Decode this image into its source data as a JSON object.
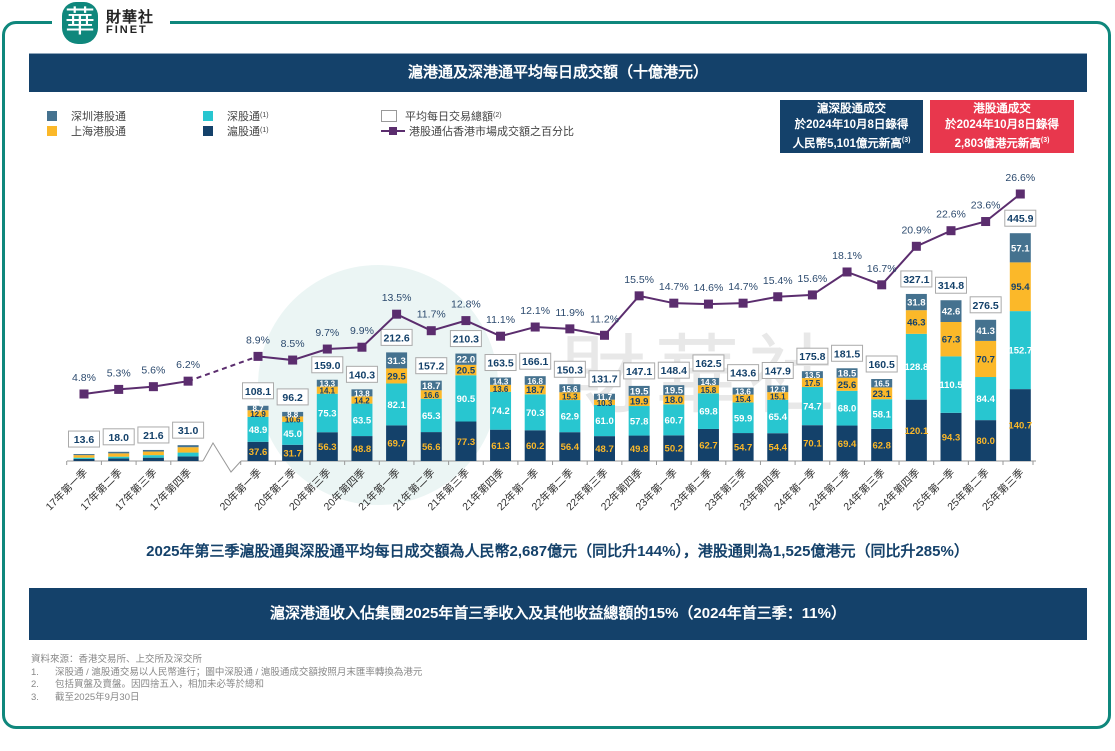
{
  "brand": {
    "logo_char": "華",
    "name_cn": "財華社",
    "name_en": "FINET"
  },
  "title": "滬港通及深港通平均每日成交額（十億港元）",
  "legend": {
    "items": [
      {
        "label": "深圳港股通",
        "color": "#45728f",
        "sup": ""
      },
      {
        "label": "上海港股通",
        "color": "#fbb829",
        "sup": ""
      },
      {
        "label": "深股通",
        "color": "#28c6d0",
        "sup": "(1)"
      },
      {
        "label": "滬股通",
        "color": "#14416a",
        "sup": "(1)"
      },
      {
        "label": "平均每日交易總額",
        "sup": "(2)"
      },
      {
        "label": "港股通佔香港市場成交額之百分比",
        "color": "#5b2d6e"
      }
    ]
  },
  "callouts": [
    {
      "lines": [
        "滬深股通成交",
        "於2024年10月8日錄得",
        "人民幣5,101億元新高"
      ],
      "sup": "(3)",
      "color": "#14416a"
    },
    {
      "lines": [
        "港股通成交",
        "於2024年10月8日錄得",
        "2,803億港元新高"
      ],
      "sup": "(3)",
      "color": "#e8374d"
    }
  ],
  "chart_data": {
    "type": "bar",
    "stacked": true,
    "title": "滬港通及深港通平均每日成交額（十億港元）",
    "categories": [
      "17年第一季",
      "17年第二季",
      "17年第三季",
      "17年第四季",
      "20年第一季",
      "20年第二季",
      "20年第三季",
      "20年第四季",
      "21年第一季",
      "21年第二季",
      "21年第三季",
      "21年第四季",
      "22年第一季",
      "22年第二季",
      "22年第三季",
      "22年第四季",
      "23年第一季",
      "23年第二季",
      "23年第三季",
      "23年第四季",
      "24年第一季",
      "24年第二季",
      "24年第三季",
      "24年第四季",
      "25年第一季",
      "25年第二季",
      "25年第三季"
    ],
    "axis_break_after": "17年第四季",
    "series": [
      {
        "name": "滬股通",
        "color": "#14416a",
        "values": [
          4.0,
          5.0,
          6.5,
          9.0,
          37.6,
          31.7,
          56.3,
          48.8,
          69.7,
          56.6,
          77.3,
          61.3,
          60.2,
          56.4,
          48.7,
          49.8,
          50.2,
          62.7,
          54.7,
          54.4,
          70.1,
          69.4,
          62.8,
          120.1,
          94.3,
          80.0,
          140.7
        ]
      },
      {
        "name": "深股通",
        "color": "#28c6d0",
        "values": [
          2.5,
          3.5,
          5.0,
          7.5,
          48.9,
          45.0,
          75.3,
          63.5,
          82.1,
          65.3,
          90.5,
          74.2,
          70.3,
          62.9,
          61.0,
          57.8,
          60.7,
          69.8,
          59.9,
          65.4,
          74.7,
          68.0,
          58.1,
          128.8,
          110.5,
          84.4,
          152.7
        ]
      },
      {
        "name": "上海港股通",
        "color": "#fbb829",
        "values": [
          5.0,
          6.5,
          7.0,
          10.5,
          12.9,
          10.6,
          14.1,
          14.2,
          29.5,
          16.6,
          20.5,
          13.6,
          18.7,
          15.3,
          10.3,
          19.9,
          18.0,
          15.8,
          15.4,
          15.1,
          17.5,
          25.6,
          23.1,
          46.3,
          67.3,
          70.7,
          95.4
        ]
      },
      {
        "name": "深圳港股通",
        "color": "#45728f",
        "values": [
          2.1,
          3.0,
          3.1,
          4.0,
          8.7,
          8.8,
          13.3,
          13.8,
          31.3,
          18.7,
          22.0,
          14.3,
          16.8,
          15.6,
          11.7,
          19.5,
          19.5,
          14.3,
          13.6,
          12.9,
          13.5,
          18.5,
          16.5,
          31.8,
          42.6,
          41.3,
          57.1
        ]
      }
    ],
    "segment_labels_shown": {
      "滬股通": true,
      "深股通": true,
      "上海港股通": true,
      "深圳港股通": true
    },
    "totals": {
      "name": "平均每日交易總額",
      "values": [
        13.6,
        18.0,
        21.6,
        31.0,
        108.1,
        96.2,
        159.0,
        140.3,
        212.6,
        157.2,
        210.3,
        163.5,
        166.1,
        150.3,
        131.7,
        147.1,
        148.4,
        162.5,
        143.6,
        147.9,
        175.8,
        181.5,
        160.5,
        327.1,
        314.8,
        276.5,
        445.9
      ]
    },
    "line": {
      "name": "港股通佔香港市場成交額之百分比",
      "color": "#5b2d6e",
      "unit": "%",
      "values": [
        4.8,
        5.3,
        5.6,
        6.2,
        8.9,
        8.5,
        9.7,
        9.9,
        13.5,
        11.7,
        12.8,
        11.1,
        12.1,
        11.9,
        11.2,
        15.5,
        14.7,
        14.6,
        14.7,
        15.4,
        15.6,
        18.1,
        16.7,
        20.9,
        22.6,
        23.6,
        26.6
      ],
      "dashed_between": [
        "17年第四季",
        "20年第一季"
      ]
    },
    "xlabel": "",
    "ylabel": "",
    "ylim": [
      0,
      460
    ],
    "grid": false,
    "legend_position": "top-left"
  },
  "summary": "2025年第三季滬股通與深股通平均每日成交額為人民幣2,687億元（同比升144%），港股通則為1,525億港元（同比升285%）",
  "revenue_banner": "滬深港通收入佔集團2025年首三季收入及其他收益總額的15%（2024年首三季：11%）",
  "notes": {
    "source": "資料來源：香港交易所、上交所及深交所",
    "items": [
      {
        "num": "1.",
        "text": "深股通 / 滬股通交易以人民幣進行；圖中深股通 / 滬股通成交額按照月末匯率轉換為港元"
      },
      {
        "num": "2.",
        "text": "包括買盤及賣盤。因四捨五入，相加未必等於總和"
      },
      {
        "num": "3.",
        "text": "截至2025年9月30日"
      }
    ]
  },
  "watermark": "財華社"
}
